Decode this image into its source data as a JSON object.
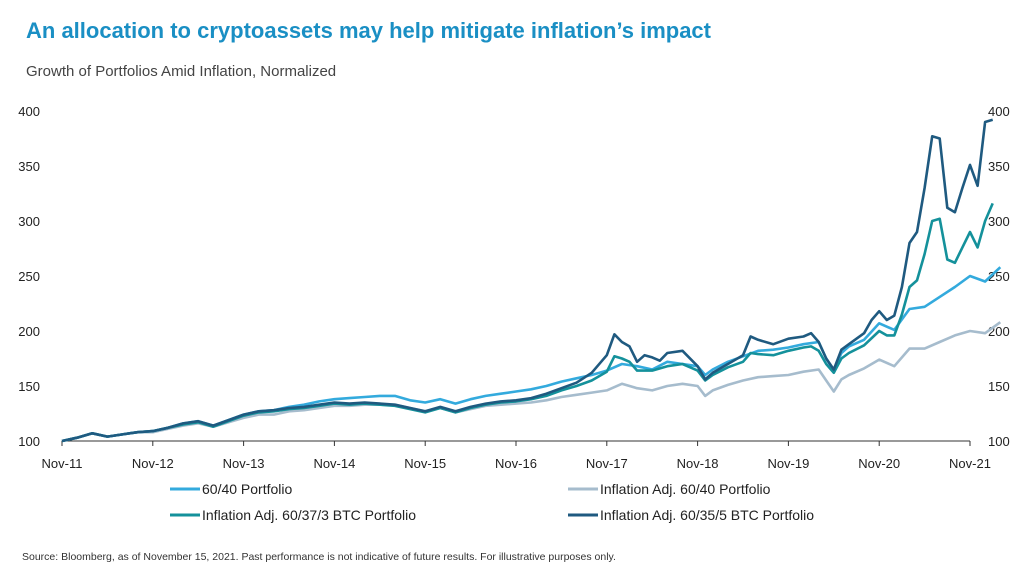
{
  "title": "An allocation to cryptoassets may help mitigate inflation’s impact",
  "subtitle": "Growth of Portfolios Amid Inflation, Normalized",
  "source": "Source: Bloomberg, as of November 15, 2021. Past performance is not indicative of future results. For illustrative purposes only.",
  "chart_data": {
    "type": "line",
    "ylim": [
      100,
      400
    ],
    "yticks": [
      100,
      150,
      200,
      250,
      300,
      350,
      400
    ],
    "xlim": [
      0,
      120
    ],
    "xticks": [
      {
        "x": 0,
        "label": "Nov-11"
      },
      {
        "x": 12,
        "label": "Nov-12"
      },
      {
        "x": 24,
        "label": "Nov-13"
      },
      {
        "x": 36,
        "label": "Nov-14"
      },
      {
        "x": 48,
        "label": "Nov-15"
      },
      {
        "x": 60,
        "label": "Nov-16"
      },
      {
        "x": 72,
        "label": "Nov-17"
      },
      {
        "x": 84,
        "label": "Nov-18"
      },
      {
        "x": 96,
        "label": "Nov-19"
      },
      {
        "x": 108,
        "label": "Nov-20"
      },
      {
        "x": 120,
        "label": "Nov-21"
      }
    ],
    "series": [
      {
        "name": "60/40 Portfolio",
        "color": "#33aadd",
        "points": [
          [
            0,
            100
          ],
          [
            2,
            103
          ],
          [
            4,
            107
          ],
          [
            6,
            104
          ],
          [
            8,
            106
          ],
          [
            10,
            108
          ],
          [
            12,
            109
          ],
          [
            14,
            112
          ],
          [
            16,
            116
          ],
          [
            18,
            118
          ],
          [
            20,
            114
          ],
          [
            22,
            119
          ],
          [
            24,
            124
          ],
          [
            26,
            127
          ],
          [
            28,
            128
          ],
          [
            30,
            131
          ],
          [
            32,
            133
          ],
          [
            34,
            136
          ],
          [
            36,
            138
          ],
          [
            38,
            139
          ],
          [
            40,
            140
          ],
          [
            42,
            141
          ],
          [
            44,
            141
          ],
          [
            46,
            137
          ],
          [
            48,
            135
          ],
          [
            50,
            138
          ],
          [
            52,
            134
          ],
          [
            54,
            138
          ],
          [
            56,
            141
          ],
          [
            58,
            143
          ],
          [
            60,
            145
          ],
          [
            62,
            147
          ],
          [
            64,
            150
          ],
          [
            66,
            154
          ],
          [
            68,
            157
          ],
          [
            70,
            160
          ],
          [
            72,
            164
          ],
          [
            74,
            170
          ],
          [
            76,
            168
          ],
          [
            78,
            165
          ],
          [
            80,
            172
          ],
          [
            82,
            170
          ],
          [
            84,
            168
          ],
          [
            85,
            160
          ],
          [
            86,
            165
          ],
          [
            88,
            172
          ],
          [
            90,
            177
          ],
          [
            92,
            182
          ],
          [
            94,
            183
          ],
          [
            96,
            185
          ],
          [
            98,
            188
          ],
          [
            100,
            190
          ],
          [
            101,
            175
          ],
          [
            102,
            164
          ],
          [
            103,
            180
          ],
          [
            104,
            186
          ],
          [
            106,
            192
          ],
          [
            108,
            207
          ],
          [
            110,
            201
          ],
          [
            112,
            220
          ],
          [
            114,
            222
          ],
          [
            116,
            231
          ],
          [
            118,
            240
          ],
          [
            120,
            250
          ],
          [
            122,
            245
          ],
          [
            124,
            258
          ]
        ]
      },
      {
        "name": "Inflation Adj. 60/40 Portfolio",
        "color": "#a6bccd",
        "points": [
          [
            0,
            100
          ],
          [
            2,
            103
          ],
          [
            4,
            107
          ],
          [
            6,
            104
          ],
          [
            8,
            106
          ],
          [
            10,
            108
          ],
          [
            12,
            108
          ],
          [
            14,
            111
          ],
          [
            16,
            114
          ],
          [
            18,
            116
          ],
          [
            20,
            113
          ],
          [
            22,
            117
          ],
          [
            24,
            121
          ],
          [
            26,
            124
          ],
          [
            28,
            124
          ],
          [
            30,
            127
          ],
          [
            32,
            128
          ],
          [
            34,
            130
          ],
          [
            36,
            132
          ],
          [
            38,
            132
          ],
          [
            40,
            133
          ],
          [
            42,
            133
          ],
          [
            44,
            133
          ],
          [
            46,
            130
          ],
          [
            48,
            127
          ],
          [
            50,
            130
          ],
          [
            52,
            126
          ],
          [
            54,
            129
          ],
          [
            56,
            132
          ],
          [
            58,
            133
          ],
          [
            60,
            134
          ],
          [
            62,
            135
          ],
          [
            64,
            137
          ],
          [
            66,
            140
          ],
          [
            68,
            142
          ],
          [
            70,
            144
          ],
          [
            72,
            146
          ],
          [
            74,
            152
          ],
          [
            76,
            148
          ],
          [
            78,
            146
          ],
          [
            80,
            150
          ],
          [
            82,
            152
          ],
          [
            84,
            150
          ],
          [
            85,
            141
          ],
          [
            86,
            146
          ],
          [
            88,
            151
          ],
          [
            90,
            155
          ],
          [
            92,
            158
          ],
          [
            94,
            159
          ],
          [
            96,
            160
          ],
          [
            98,
            163
          ],
          [
            100,
            165
          ],
          [
            101,
            155
          ],
          [
            102,
            145
          ],
          [
            103,
            156
          ],
          [
            104,
            160
          ],
          [
            106,
            166
          ],
          [
            108,
            174
          ],
          [
            110,
            168
          ],
          [
            112,
            184
          ],
          [
            114,
            184
          ],
          [
            116,
            190
          ],
          [
            118,
            196
          ],
          [
            120,
            200
          ],
          [
            122,
            198
          ],
          [
            124,
            208
          ]
        ]
      },
      {
        "name": "Inflation Adj. 60/37/3 BTC Portfolio",
        "color": "#14919b",
        "points": [
          [
            0,
            100
          ],
          [
            2,
            103
          ],
          [
            4,
            107
          ],
          [
            6,
            104
          ],
          [
            8,
            106
          ],
          [
            10,
            108
          ],
          [
            12,
            109
          ],
          [
            14,
            112
          ],
          [
            16,
            115
          ],
          [
            18,
            117
          ],
          [
            20,
            113
          ],
          [
            22,
            118
          ],
          [
            24,
            123
          ],
          [
            26,
            126
          ],
          [
            28,
            127
          ],
          [
            30,
            129
          ],
          [
            32,
            130
          ],
          [
            34,
            132
          ],
          [
            36,
            134
          ],
          [
            38,
            133
          ],
          [
            40,
            134
          ],
          [
            42,
            133
          ],
          [
            44,
            132
          ],
          [
            46,
            129
          ],
          [
            48,
            126
          ],
          [
            50,
            130
          ],
          [
            52,
            126
          ],
          [
            54,
            130
          ],
          [
            56,
            133
          ],
          [
            58,
            135
          ],
          [
            60,
            136
          ],
          [
            62,
            138
          ],
          [
            64,
            141
          ],
          [
            66,
            146
          ],
          [
            68,
            150
          ],
          [
            70,
            155
          ],
          [
            72,
            163
          ],
          [
            73,
            177
          ],
          [
            74,
            175
          ],
          [
            75,
            172
          ],
          [
            76,
            164
          ],
          [
            78,
            164
          ],
          [
            80,
            168
          ],
          [
            82,
            170
          ],
          [
            84,
            164
          ],
          [
            85,
            155
          ],
          [
            86,
            160
          ],
          [
            88,
            167
          ],
          [
            90,
            172
          ],
          [
            91,
            180
          ],
          [
            92,
            179
          ],
          [
            94,
            178
          ],
          [
            96,
            182
          ],
          [
            98,
            185
          ],
          [
            99,
            186
          ],
          [
            100,
            182
          ],
          [
            101,
            170
          ],
          [
            102,
            162
          ],
          [
            103,
            175
          ],
          [
            104,
            180
          ],
          [
            106,
            187
          ],
          [
            108,
            200
          ],
          [
            109,
            196
          ],
          [
            110,
            196
          ],
          [
            111,
            215
          ],
          [
            112,
            240
          ],
          [
            113,
            246
          ],
          [
            114,
            270
          ],
          [
            115,
            300
          ],
          [
            116,
            302
          ],
          [
            117,
            265
          ],
          [
            118,
            262
          ],
          [
            119,
            276
          ],
          [
            120,
            290
          ],
          [
            121,
            276
          ],
          [
            122,
            300
          ],
          [
            123,
            316
          ]
        ]
      },
      {
        "name": "Inflation Adj. 60/35/5 BTC Portfolio",
        "color": "#1f5a80",
        "points": [
          [
            0,
            100
          ],
          [
            2,
            103
          ],
          [
            4,
            107
          ],
          [
            6,
            104
          ],
          [
            8,
            106
          ],
          [
            10,
            108
          ],
          [
            12,
            109
          ],
          [
            14,
            112
          ],
          [
            16,
            116
          ],
          [
            18,
            118
          ],
          [
            20,
            114
          ],
          [
            22,
            119
          ],
          [
            24,
            124
          ],
          [
            26,
            127
          ],
          [
            28,
            128
          ],
          [
            30,
            130
          ],
          [
            32,
            131
          ],
          [
            34,
            133
          ],
          [
            36,
            135
          ],
          [
            38,
            134
          ],
          [
            40,
            135
          ],
          [
            42,
            134
          ],
          [
            44,
            133
          ],
          [
            46,
            130
          ],
          [
            48,
            127
          ],
          [
            50,
            131
          ],
          [
            52,
            127
          ],
          [
            54,
            131
          ],
          [
            56,
            134
          ],
          [
            58,
            136
          ],
          [
            60,
            137
          ],
          [
            62,
            139
          ],
          [
            64,
            143
          ],
          [
            66,
            148
          ],
          [
            68,
            153
          ],
          [
            70,
            162
          ],
          [
            72,
            178
          ],
          [
            73,
            197
          ],
          [
            74,
            190
          ],
          [
            75,
            186
          ],
          [
            76,
            172
          ],
          [
            77,
            178
          ],
          [
            78,
            176
          ],
          [
            79,
            173
          ],
          [
            80,
            180
          ],
          [
            82,
            182
          ],
          [
            84,
            168
          ],
          [
            85,
            156
          ],
          [
            86,
            162
          ],
          [
            88,
            170
          ],
          [
            90,
            178
          ],
          [
            91,
            195
          ],
          [
            92,
            192
          ],
          [
            94,
            188
          ],
          [
            96,
            193
          ],
          [
            98,
            195
          ],
          [
            99,
            198
          ],
          [
            100,
            190
          ],
          [
            101,
            175
          ],
          [
            102,
            165
          ],
          [
            103,
            183
          ],
          [
            104,
            188
          ],
          [
            106,
            198
          ],
          [
            107,
            210
          ],
          [
            108,
            218
          ],
          [
            109,
            210
          ],
          [
            110,
            214
          ],
          [
            111,
            240
          ],
          [
            112,
            280
          ],
          [
            113,
            290
          ],
          [
            114,
            330
          ],
          [
            115,
            377
          ],
          [
            116,
            375
          ],
          [
            117,
            312
          ],
          [
            118,
            308
          ],
          [
            119,
            330
          ],
          [
            120,
            351
          ],
          [
            121,
            332
          ],
          [
            122,
            390
          ],
          [
            123,
            392
          ]
        ]
      }
    ],
    "legend_position": "bottom"
  }
}
